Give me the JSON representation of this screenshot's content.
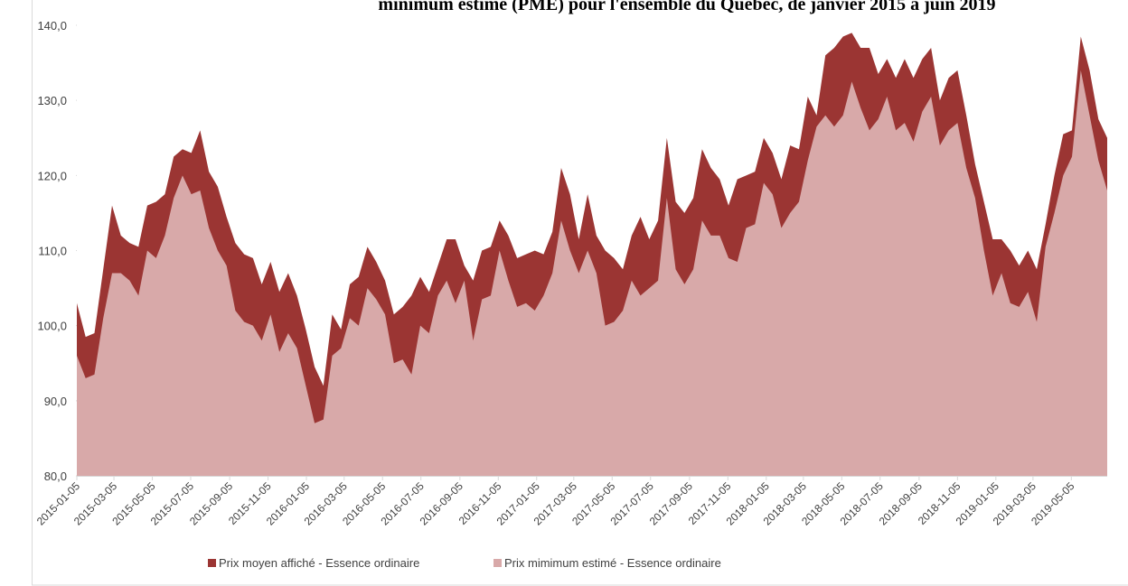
{
  "chart_data": {
    "type": "area",
    "title": "minimum estimé (PME) pour l'ensemble du Québec, de janvier 2015 à juin 2019",
    "x": [
      "2015-01-05",
      "2015-01-19",
      "2015-02-02",
      "2015-02-16",
      "2015-03-02",
      "2015-03-16",
      "2015-03-30",
      "2015-04-13",
      "2015-04-27",
      "2015-05-11",
      "2015-05-25",
      "2015-06-08",
      "2015-06-22",
      "2015-07-06",
      "2015-07-20",
      "2015-08-03",
      "2015-08-17",
      "2015-08-31",
      "2015-09-14",
      "2015-09-28",
      "2015-10-12",
      "2015-10-26",
      "2015-11-09",
      "2015-11-23",
      "2015-12-07",
      "2015-12-21",
      "2016-01-04",
      "2016-01-18",
      "2016-02-01",
      "2016-02-15",
      "2016-02-29",
      "2016-03-14",
      "2016-03-28",
      "2016-04-11",
      "2016-04-25",
      "2016-05-09",
      "2016-05-23",
      "2016-06-06",
      "2016-06-20",
      "2016-07-04",
      "2016-07-18",
      "2016-08-01",
      "2016-08-15",
      "2016-08-29",
      "2016-09-12",
      "2016-09-26",
      "2016-10-10",
      "2016-10-24",
      "2016-11-07",
      "2016-11-21",
      "2016-12-05",
      "2016-12-19",
      "2017-01-02",
      "2017-01-16",
      "2017-01-30",
      "2017-02-13",
      "2017-02-27",
      "2017-03-13",
      "2017-03-27",
      "2017-04-10",
      "2017-04-24",
      "2017-05-08",
      "2017-05-22",
      "2017-06-05",
      "2017-06-19",
      "2017-07-03",
      "2017-07-17",
      "2017-07-31",
      "2017-08-14",
      "2017-08-28",
      "2017-09-11",
      "2017-09-25",
      "2017-10-09",
      "2017-10-23",
      "2017-11-06",
      "2017-11-20",
      "2017-12-04",
      "2017-12-18",
      "2018-01-01",
      "2018-01-15",
      "2018-01-29",
      "2018-02-12",
      "2018-02-26",
      "2018-03-12",
      "2018-03-26",
      "2018-04-09",
      "2018-04-23",
      "2018-05-07",
      "2018-05-21",
      "2018-06-04",
      "2018-06-18",
      "2018-07-02",
      "2018-07-16",
      "2018-07-30",
      "2018-08-13",
      "2018-08-27",
      "2018-09-10",
      "2018-09-24",
      "2018-10-08",
      "2018-10-22",
      "2018-11-05",
      "2018-11-19",
      "2018-12-03",
      "2018-12-17",
      "2018-12-31",
      "2019-01-14",
      "2019-01-28",
      "2019-02-11",
      "2019-02-25",
      "2019-03-11",
      "2019-03-25",
      "2019-04-08",
      "2019-04-22",
      "2019-05-06",
      "2019-05-20",
      "2019-06-03",
      "2019-06-17",
      "2019-07-01"
    ],
    "series": [
      {
        "name": "Prix moyen affiché - Essence ordinaire",
        "color": "#9b3533",
        "values": [
          103,
          98.5,
          99,
          107.5,
          116,
          112,
          111,
          110.5,
          116,
          116.5,
          117.5,
          122.5,
          123.5,
          123,
          126,
          120.5,
          118.5,
          114.5,
          111,
          109.5,
          109,
          105.5,
          108.5,
          104.5,
          107,
          104,
          99.5,
          94.5,
          92,
          101.5,
          99.5,
          105.5,
          106.5,
          110.5,
          108.5,
          106,
          101.5,
          102.5,
          104,
          106.5,
          104.5,
          108,
          111.5,
          111.5,
          108,
          106,
          110,
          110.5,
          114,
          112,
          109,
          109.5,
          110,
          109.5,
          112.5,
          121,
          117.5,
          111.5,
          117.5,
          112,
          110,
          109,
          107.5,
          112,
          114.5,
          111.5,
          114,
          125,
          116.5,
          115,
          117,
          123.5,
          121,
          119.5,
          116,
          119.5,
          120,
          120.5,
          125,
          123,
          119.5,
          124,
          123.5,
          130.5,
          128,
          136,
          137,
          138.5,
          139,
          137,
          137,
          133.5,
          135.5,
          133,
          135.5,
          133,
          135.5,
          137,
          130,
          133,
          134,
          128,
          121.5,
          116.5,
          111.5,
          111.5,
          110,
          108,
          110,
          107.5,
          113.5,
          120,
          125.5,
          126,
          138.5,
          134,
          127.5,
          125
        ]
      },
      {
        "name": "Prix mimimum estimé - Essence ordinaire",
        "color": "#d8a9a9",
        "values": [
          96,
          93,
          93.5,
          101,
          107,
          107,
          106,
          104,
          110,
          109,
          112,
          117,
          120,
          117.5,
          118,
          113,
          110,
          108,
          102,
          100.5,
          100,
          98,
          101.5,
          96.5,
          99,
          97,
          92,
          87,
          87.5,
          96,
          97,
          101,
          100,
          105,
          103.5,
          101.5,
          95,
          95.5,
          93.5,
          100,
          99,
          104,
          106,
          103,
          106,
          98,
          103.5,
          104,
          110,
          106,
          102.5,
          103,
          102,
          104,
          107,
          114,
          110,
          107,
          110,
          107,
          100,
          100.5,
          102,
          106,
          104,
          105,
          106,
          117,
          107.5,
          105.5,
          107.5,
          114,
          112,
          112,
          109,
          108.5,
          113,
          113.5,
          119,
          117.5,
          113,
          115,
          116.5,
          122,
          126.5,
          128,
          126.5,
          128,
          132.5,
          129,
          126,
          127.5,
          130.5,
          126,
          127,
          124.5,
          128.5,
          130.5,
          124,
          126,
          127,
          121,
          117,
          110,
          104,
          107,
          103,
          102.5,
          104.5,
          100.5,
          110.5,
          115,
          120,
          122.5,
          134,
          128,
          122,
          118
        ]
      }
    ],
    "ylim": [
      80,
      140
    ],
    "yticks": [
      {
        "value": 80,
        "label": "80,0"
      },
      {
        "value": 90,
        "label": "90,0"
      },
      {
        "value": 100,
        "label": "100,0"
      },
      {
        "value": 110,
        "label": "110,0"
      },
      {
        "value": 120,
        "label": "120,0"
      },
      {
        "value": 130,
        "label": "130,0"
      },
      {
        "value": 140,
        "label": "140,0"
      }
    ],
    "xticks": [
      "2015-01-05",
      "2015-03-05",
      "2015-05-05",
      "2015-07-05",
      "2015-09-05",
      "2015-11-05",
      "2016-01-05",
      "2016-03-05",
      "2016-05-05",
      "2016-07-05",
      "2016-09-05",
      "2016-11-05",
      "2017-01-05",
      "2017-03-05",
      "2017-05-05",
      "2017-07-05",
      "2017-09-05",
      "2017-11-05",
      "2018-01-05",
      "2018-03-05",
      "2018-05-05",
      "2018-07-05",
      "2018-09-05",
      "2018-11-05",
      "2019-01-05",
      "2019-03-05",
      "2019-05-05"
    ],
    "legend": "bottom"
  }
}
